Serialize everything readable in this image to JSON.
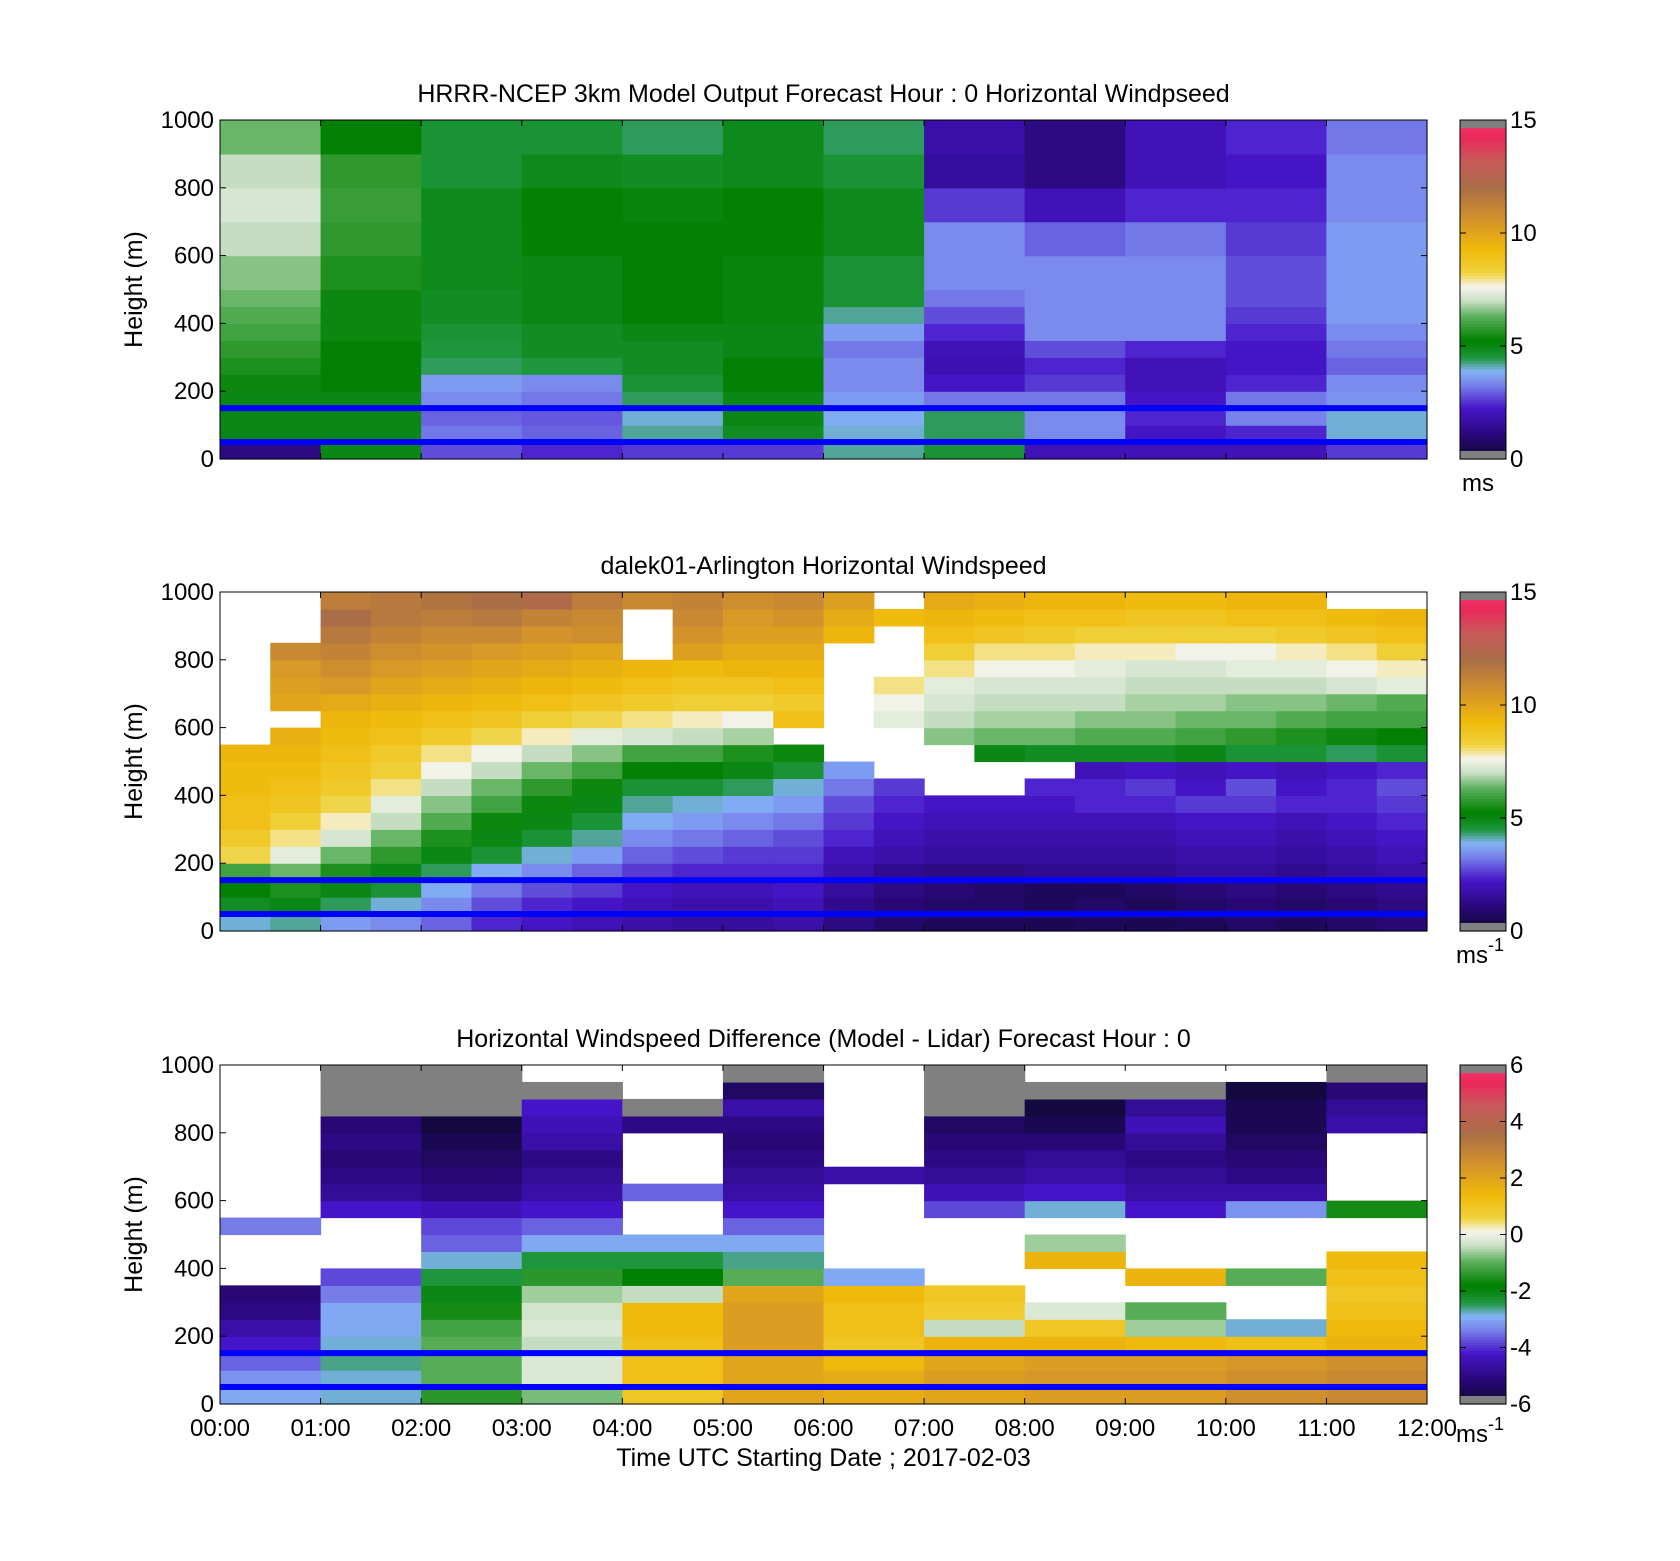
{
  "chart_data": [
    {
      "type": "heatmap",
      "title": "HRRR-NCEP 3km Model Output   Forecast Hour : 0 Horizontal Windpseed",
      "ylabel": "Height (m)",
      "xlabel": "",
      "xlim": [
        0,
        12
      ],
      "ylim": [
        0,
        1000
      ],
      "yticks": [
        "0",
        "200",
        "400",
        "600",
        "800",
        "1000"
      ],
      "colorbar": {
        "min": 0,
        "max": 15,
        "ticks": [
          "0",
          "5",
          "10",
          "15"
        ],
        "unit": "ms",
        "unit_sup": ""
      },
      "reference_heights": [
        50,
        150
      ],
      "time_hours": [
        0,
        1,
        2,
        3,
        4,
        5,
        6,
        7,
        8,
        9,
        10,
        11
      ],
      "height_bands": [
        0,
        50,
        100,
        150,
        200,
        250,
        300,
        350,
        400,
        450,
        500,
        600,
        700,
        800,
        900,
        1000
      ],
      "values": [
        [
          1.2,
          5.0,
          2.8,
          2.4,
          2.6,
          2.6,
          4.2,
          4.6,
          2.0,
          2.0,
          2.0,
          2.6
        ],
        [
          5.0,
          5.0,
          3.2,
          3.0,
          4.2,
          4.8,
          4.0,
          4.4,
          3.4,
          2.2,
          2.4,
          4.0
        ],
        [
          5.0,
          5.0,
          3.0,
          2.9,
          4.0,
          5.0,
          3.8,
          4.4,
          3.4,
          2.4,
          3.3,
          4.0
        ],
        [
          5.0,
          5.0,
          3.4,
          3.2,
          4.4,
          5.0,
          3.6,
          3.2,
          3.2,
          2.2,
          3.2,
          3.5
        ],
        [
          5.4,
          5.2,
          3.6,
          3.4,
          4.6,
          5.2,
          3.4,
          2.2,
          2.6,
          2.0,
          2.4,
          3.4
        ],
        [
          5.6,
          5.2,
          4.4,
          4.5,
          4.8,
          5.2,
          3.4,
          1.9,
          2.4,
          2.0,
          2.2,
          3.0
        ],
        [
          5.8,
          5.2,
          4.5,
          4.8,
          4.8,
          5.0,
          3.2,
          2.0,
          2.8,
          2.4,
          2.2,
          3.2
        ],
        [
          6.0,
          5.4,
          4.6,
          4.8,
          5.0,
          5.0,
          3.6,
          2.4,
          3.4,
          3.4,
          2.4,
          3.4
        ],
        [
          6.2,
          5.4,
          4.8,
          5.0,
          5.2,
          5.1,
          4.2,
          2.8,
          3.4,
          3.4,
          2.6,
          3.6
        ],
        [
          6.4,
          5.4,
          4.8,
          5.0,
          5.2,
          5.1,
          4.6,
          3.2,
          3.4,
          3.4,
          2.8,
          3.6
        ],
        [
          6.6,
          5.6,
          4.9,
          5.0,
          5.2,
          5.1,
          4.6,
          3.4,
          3.4,
          3.4,
          2.8,
          3.6
        ],
        [
          7.0,
          5.8,
          4.9,
          5.3,
          5.2,
          5.3,
          4.9,
          3.4,
          3.0,
          3.2,
          2.6,
          3.6
        ],
        [
          7.2,
          5.9,
          4.9,
          5.2,
          5.1,
          5.2,
          4.9,
          2.6,
          2.0,
          2.4,
          2.4,
          3.4
        ],
        [
          7.0,
          5.8,
          4.6,
          4.9,
          4.8,
          4.9,
          4.6,
          1.6,
          1.2,
          2.0,
          2.2,
          3.4
        ],
        [
          6.4,
          5.2,
          4.6,
          4.6,
          4.4,
          4.9,
          4.4,
          1.8,
          1.2,
          2.0,
          2.4,
          3.2
        ]
      ]
    },
    {
      "type": "heatmap",
      "title": "dalek01-Arlington  Horizontal Windspeed",
      "ylabel": "Height (m)",
      "xlabel": "",
      "xlim": [
        0,
        12
      ],
      "ylim": [
        0,
        1000
      ],
      "yticks": [
        "0",
        "200",
        "400",
        "600",
        "800",
        "1000"
      ],
      "colorbar": {
        "min": 0,
        "max": 15,
        "ticks": [
          "0",
          "5",
          "10",
          "15"
        ],
        "unit": "ms",
        "unit_sup": "-1"
      },
      "reference_heights": [
        50,
        150
      ],
      "time_hours": [
        0,
        0.5,
        1,
        1.5,
        2,
        2.5,
        3,
        3.5,
        4,
        4.5,
        5,
        5.5,
        6,
        6.5,
        7,
        7.5,
        8,
        8.5,
        9,
        9.5,
        10,
        10.5,
        11,
        11.5
      ],
      "height_bands": [
        0,
        50,
        100,
        150,
        200,
        250,
        300,
        350,
        400,
        450,
        500,
        550,
        600,
        650,
        700,
        750,
        800,
        850,
        900,
        950,
        1000
      ],
      "values": [
        [
          4.0,
          4.2,
          3.6,
          3.4,
          3.0,
          2.4,
          2.2,
          2.0,
          1.8,
          1.6,
          1.6,
          1.8,
          1.2,
          0.8,
          0.6,
          0.6,
          0.5,
          0.6,
          0.5,
          0.6,
          0.8,
          0.6,
          0.8,
          1.0
        ],
        [
          4.8,
          5.0,
          4.4,
          4.0,
          3.4,
          2.8,
          2.4,
          2.2,
          2.0,
          1.8,
          1.8,
          2.0,
          1.4,
          1.0,
          0.8,
          0.8,
          0.6,
          0.8,
          0.6,
          0.8,
          1.0,
          0.8,
          1.0,
          1.2
        ],
        [
          5.2,
          5.6,
          5.0,
          4.6,
          3.8,
          3.2,
          2.8,
          2.6,
          2.2,
          2.0,
          2.0,
          2.2,
          1.6,
          1.2,
          1.0,
          0.8,
          0.6,
          0.6,
          0.8,
          1.0,
          1.2,
          1.0,
          1.2,
          1.4
        ],
        [
          6.0,
          6.4,
          5.6,
          5.0,
          4.4,
          3.8,
          3.4,
          3.0,
          2.6,
          2.4,
          2.4,
          2.4,
          1.8,
          1.4,
          1.2,
          1.2,
          1.4,
          1.4,
          1.4,
          1.6,
          1.6,
          1.4,
          1.6,
          1.8
        ],
        [
          8.2,
          7.4,
          6.4,
          5.8,
          5.0,
          4.6,
          4.0,
          3.6,
          3.0,
          2.8,
          2.6,
          2.6,
          2.0,
          1.8,
          1.6,
          1.6,
          1.6,
          1.6,
          1.6,
          1.8,
          1.8,
          1.6,
          1.8,
          2.0
        ],
        [
          8.6,
          8.0,
          7.2,
          6.4,
          5.6,
          5.0,
          4.6,
          4.2,
          3.4,
          3.2,
          3.0,
          2.8,
          2.4,
          2.0,
          1.8,
          1.8,
          1.8,
          1.8,
          1.8,
          2.0,
          2.0,
          1.8,
          2.0,
          2.2
        ],
        [
          9.0,
          8.4,
          7.8,
          7.0,
          6.2,
          5.4,
          5.0,
          4.6,
          3.8,
          3.6,
          3.4,
          3.2,
          2.6,
          2.2,
          2.0,
          2.0,
          2.0,
          2.0,
          2.0,
          2.2,
          2.2,
          2.0,
          2.2,
          2.4
        ],
        [
          9.0,
          8.8,
          8.2,
          7.4,
          6.6,
          6.0,
          5.4,
          5.0,
          4.2,
          4.0,
          3.8,
          3.6,
          2.8,
          2.4,
          2.2,
          2.2,
          2.2,
          2.4,
          2.4,
          2.6,
          2.6,
          2.4,
          2.4,
          2.6
        ],
        [
          9.2,
          9.0,
          8.6,
          8.0,
          7.0,
          6.4,
          5.8,
          5.4,
          4.6,
          4.6,
          4.4,
          4.0,
          3.2,
          2.6,
          null,
          null,
          2.4,
          2.4,
          2.6,
          2.2,
          2.8,
          2.2,
          2.4,
          2.8
        ],
        [
          9.2,
          9.2,
          8.8,
          8.4,
          7.6,
          7.0,
          6.4,
          6.0,
          5.2,
          5.2,
          5.0,
          4.6,
          3.6,
          null,
          null,
          null,
          null,
          2.0,
          2.2,
          2.0,
          2.2,
          2.0,
          2.2,
          2.4
        ],
        [
          9.4,
          9.4,
          9.0,
          8.6,
          8.0,
          7.6,
          7.0,
          6.6,
          6.0,
          6.0,
          5.6,
          5.4,
          null,
          null,
          null,
          5.0,
          4.8,
          4.8,
          4.8,
          5.0,
          4.6,
          4.6,
          4.4,
          4.6
        ],
        [
          null,
          9.6,
          9.2,
          9.0,
          8.6,
          8.2,
          7.8,
          7.4,
          7.2,
          7.0,
          6.8,
          null,
          null,
          null,
          6.6,
          6.4,
          6.4,
          6.2,
          6.2,
          6.0,
          5.8,
          5.6,
          5.4,
          5.2
        ],
        [
          null,
          null,
          9.4,
          9.2,
          9.0,
          8.8,
          8.4,
          8.2,
          8.0,
          7.8,
          7.6,
          9.0,
          null,
          7.4,
          7.0,
          6.8,
          6.8,
          6.6,
          6.6,
          6.4,
          6.4,
          6.2,
          6.0,
          6.0
        ],
        [
          null,
          10.0,
          9.8,
          9.6,
          9.4,
          9.2,
          9.0,
          8.8,
          8.6,
          8.4,
          8.4,
          8.6,
          null,
          7.6,
          7.2,
          7.0,
          7.0,
          7.0,
          6.8,
          6.8,
          6.6,
          6.6,
          6.4,
          6.2
        ],
        [
          null,
          10.2,
          10.4,
          10.0,
          9.8,
          9.6,
          9.4,
          9.2,
          9.0,
          8.8,
          8.8,
          9.0,
          null,
          8.0,
          7.4,
          7.2,
          7.2,
          7.2,
          7.0,
          7.0,
          7.0,
          7.0,
          7.2,
          7.4
        ],
        [
          null,
          10.4,
          10.8,
          10.4,
          10.2,
          10.0,
          9.8,
          9.6,
          9.4,
          9.2,
          9.4,
          9.4,
          null,
          null,
          8.0,
          7.6,
          7.6,
          7.4,
          7.2,
          7.2,
          7.4,
          7.4,
          7.6,
          7.8
        ],
        [
          null,
          11.0,
          11.2,
          10.8,
          10.6,
          10.4,
          10.2,
          10.0,
          null,
          10.2,
          9.8,
          9.8,
          null,
          null,
          8.4,
          8.0,
          8.0,
          7.8,
          7.8,
          7.6,
          7.6,
          7.8,
          8.0,
          8.4
        ],
        [
          null,
          null,
          11.6,
          11.2,
          11.0,
          11.0,
          10.6,
          10.8,
          null,
          10.6,
          10.2,
          10.2,
          9.4,
          null,
          9.0,
          8.8,
          8.6,
          8.4,
          8.4,
          8.4,
          8.4,
          8.6,
          8.8,
          9.0
        ],
        [
          null,
          null,
          12.0,
          11.6,
          11.4,
          11.6,
          11.2,
          11.0,
          null,
          11.0,
          10.4,
          10.6,
          9.8,
          9.2,
          9.4,
          9.2,
          9.0,
          9.0,
          8.8,
          8.8,
          9.0,
          9.0,
          9.2,
          9.4
        ],
        [
          null,
          null,
          11.4,
          11.6,
          11.8,
          12.0,
          12.2,
          11.4,
          11.0,
          11.2,
          10.8,
          11.0,
          10.2,
          null,
          9.8,
          9.6,
          9.4,
          9.4,
          9.2,
          9.2,
          9.4,
          9.4,
          null,
          null
        ]
      ]
    },
    {
      "type": "heatmap",
      "title": "Horizontal Windspeed Difference (Model - Lidar) Forecast Hour : 0",
      "ylabel": "Height (m)",
      "xlabel": "Time UTC  Starting Date ; 2017-02-03",
      "xlim": [
        0,
        12
      ],
      "ylim": [
        0,
        1000
      ],
      "xticks": [
        "00:00",
        "01:00",
        "02:00",
        "03:00",
        "04:00",
        "05:00",
        "06:00",
        "07:00",
        "08:00",
        "09:00",
        "10:00",
        "11:00",
        "12:00"
      ],
      "yticks": [
        "0",
        "200",
        "400",
        "600",
        "800",
        "1000"
      ],
      "colorbar": {
        "min": -6,
        "max": 6,
        "ticks": [
          "-6",
          "-4",
          "-2",
          "0",
          "2",
          "4",
          "6"
        ],
        "unit": "ms",
        "unit_sup": "-1"
      },
      "reference_heights": [
        50,
        150
      ],
      "time_hours": [
        0,
        1,
        2,
        3,
        4,
        5,
        6,
        7,
        8,
        9,
        10,
        11
      ],
      "height_bands": [
        0,
        50,
        100,
        150,
        200,
        250,
        300,
        350,
        400,
        450,
        500,
        550,
        600,
        650,
        700,
        750,
        800,
        850,
        900,
        950,
        1000
      ],
      "values": [
        [
          -3.0,
          -2.8,
          -1.4,
          -0.8,
          1.0,
          2.0,
          1.8,
          2.0,
          2.2,
          2.2,
          2.6,
          2.8
        ],
        [
          -3.2,
          -2.8,
          -1.0,
          -0.2,
          1.2,
          2.0,
          1.8,
          2.2,
          2.4,
          2.4,
          2.6,
          2.8
        ],
        [
          -3.6,
          -2.6,
          -1.0,
          -0.2,
          1.2,
          2.0,
          1.4,
          2.0,
          2.2,
          2.2,
          2.4,
          2.6
        ],
        [
          -4.2,
          -2.8,
          -1.0,
          -0.4,
          1.2,
          2.2,
          1.0,
          1.6,
          1.6,
          1.4,
          1.2,
          1.6
        ],
        [
          -4.6,
          -3.0,
          -1.2,
          -0.2,
          1.4,
          2.2,
          1.2,
          -0.4,
          1.0,
          -0.6,
          -2.8,
          1.4
        ],
        [
          -5.0,
          -3.0,
          -1.6,
          -0.3,
          1.4,
          2.2,
          1.2,
          0.8,
          -0.2,
          -1.0,
          null,
          1.2
        ],
        [
          -5.2,
          -3.4,
          -2.0,
          -0.6,
          -0.4,
          2.0,
          1.4,
          1.0,
          null,
          null,
          null,
          1.0
        ],
        [
          null,
          -3.8,
          -2.4,
          -1.4,
          -1.8,
          -1.0,
          -3.0,
          null,
          null,
          1.6,
          -1.0,
          1.2
        ],
        [
          null,
          null,
          -2.8,
          -2.4,
          -2.4,
          -2.6,
          null,
          null,
          1.6,
          null,
          null,
          1.4
        ],
        [
          null,
          null,
          -3.6,
          -3.0,
          -3.0,
          -3.0,
          null,
          null,
          -0.6,
          null,
          null,
          null
        ],
        [
          -3.4,
          null,
          -3.8,
          -3.6,
          null,
          -3.6,
          null,
          null,
          null,
          null,
          null,
          null
        ],
        [
          null,
          -4.2,
          -4.4,
          -4.2,
          null,
          -4.2,
          null,
          -3.8,
          -2.8,
          -4.2,
          -3.2,
          -1.6
        ],
        [
          null,
          -4.8,
          -5.0,
          -4.6,
          -3.6,
          -4.6,
          null,
          -4.4,
          -4.2,
          -4.6,
          -4.6,
          null
        ],
        [
          null,
          -5.0,
          -5.2,
          -4.8,
          null,
          -4.8,
          -4.6,
          -4.8,
          -4.6,
          -4.8,
          -5.0,
          null
        ],
        [
          null,
          -5.2,
          -5.4,
          -5.0,
          null,
          -5.0,
          null,
          -5.0,
          -4.8,
          -5.0,
          -5.2,
          null
        ],
        [
          null,
          -5.0,
          -5.6,
          -4.6,
          null,
          -5.2,
          null,
          -5.2,
          -5.2,
          -4.8,
          -5.4,
          null
        ],
        [
          null,
          -5.2,
          -5.8,
          -4.4,
          -5.0,
          -5.0,
          null,
          -5.4,
          -5.6,
          -4.4,
          -5.6,
          -4.6
        ],
        [
          null,
          -7,
          -7,
          -4.2,
          -7,
          -4.6,
          null,
          -7,
          -5.8,
          -4.8,
          -5.6,
          -4.8
        ],
        [
          null,
          -7,
          -7,
          -7,
          null,
          -5.4,
          null,
          -7,
          -7,
          -7,
          -5.8,
          -5.2
        ],
        [
          null,
          -7,
          -7,
          null,
          null,
          -7,
          null,
          -7,
          null,
          null,
          null,
          -7
        ]
      ]
    }
  ]
}
